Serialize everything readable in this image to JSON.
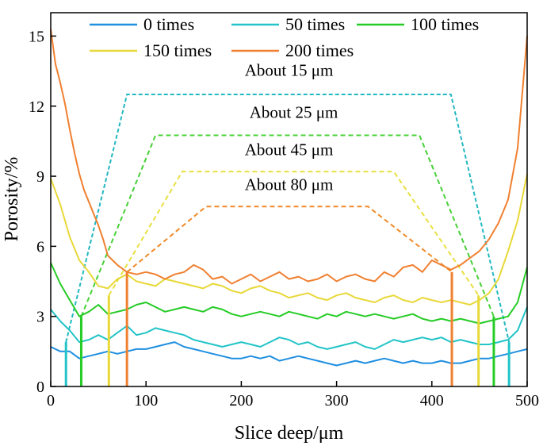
{
  "chart_data": {
    "type": "line",
    "title": "",
    "xlabel": "Slice deep/μm",
    "ylabel": "Porosity/%",
    "xlim": [
      0,
      500
    ],
    "ylim": [
      0,
      16
    ],
    "xticks": [
      0,
      100,
      200,
      300,
      400,
      500
    ],
    "yticks": [
      0,
      3,
      6,
      9,
      12,
      15
    ],
    "grid": false,
    "legend_position": "top",
    "series": [
      {
        "name": "0 times",
        "color": "#1f8fe0",
        "x": [
          0,
          10,
          20,
          30,
          40,
          50,
          60,
          70,
          80,
          90,
          100,
          110,
          120,
          130,
          140,
          150,
          160,
          170,
          180,
          190,
          200,
          210,
          220,
          230,
          240,
          250,
          260,
          270,
          280,
          290,
          300,
          310,
          320,
          330,
          340,
          350,
          360,
          370,
          380,
          390,
          400,
          410,
          420,
          430,
          440,
          450,
          460,
          470,
          480,
          490,
          500
        ],
        "values": [
          1.7,
          1.5,
          1.5,
          1.2,
          1.3,
          1.4,
          1.5,
          1.4,
          1.5,
          1.6,
          1.6,
          1.7,
          1.8,
          1.9,
          1.7,
          1.6,
          1.5,
          1.4,
          1.3,
          1.2,
          1.2,
          1.3,
          1.2,
          1.3,
          1.1,
          1.2,
          1.3,
          1.2,
          1.1,
          1.0,
          0.9,
          1.0,
          1.1,
          1.0,
          1.1,
          1.2,
          1.1,
          1.0,
          1.1,
          1.0,
          1.0,
          1.1,
          1.0,
          1.0,
          1.1,
          1.2,
          1.2,
          1.3,
          1.4,
          1.5,
          1.6
        ]
      },
      {
        "name": "50 times",
        "color": "#22c4c8",
        "x": [
          0,
          10,
          20,
          30,
          40,
          50,
          60,
          70,
          80,
          90,
          100,
          110,
          120,
          130,
          140,
          150,
          160,
          170,
          180,
          190,
          200,
          210,
          220,
          230,
          240,
          250,
          260,
          270,
          280,
          290,
          300,
          310,
          320,
          330,
          340,
          350,
          360,
          370,
          380,
          390,
          400,
          410,
          420,
          430,
          440,
          450,
          460,
          470,
          480,
          490,
          500
        ],
        "values": [
          3.3,
          2.8,
          2.4,
          1.9,
          2.0,
          2.2,
          2.0,
          2.3,
          2.6,
          2.2,
          2.3,
          2.5,
          2.4,
          2.3,
          2.2,
          2.0,
          1.9,
          1.8,
          1.7,
          1.8,
          1.9,
          1.8,
          1.7,
          1.9,
          2.1,
          2.0,
          1.8,
          1.9,
          1.7,
          1.6,
          1.7,
          1.8,
          1.9,
          1.7,
          1.6,
          1.8,
          2.0,
          1.9,
          2.0,
          2.1,
          2.0,
          2.1,
          1.9,
          2.0,
          1.9,
          1.8,
          1.8,
          1.9,
          2.0,
          2.4,
          3.4
        ]
      },
      {
        "name": "100 times",
        "color": "#26cc26",
        "x": [
          0,
          10,
          20,
          30,
          40,
          50,
          60,
          70,
          80,
          90,
          100,
          110,
          120,
          130,
          140,
          150,
          160,
          170,
          180,
          190,
          200,
          210,
          220,
          230,
          240,
          250,
          260,
          270,
          280,
          290,
          300,
          310,
          320,
          330,
          340,
          350,
          360,
          370,
          380,
          390,
          400,
          410,
          420,
          430,
          440,
          450,
          460,
          470,
          480,
          490,
          500
        ],
        "values": [
          5.3,
          4.4,
          3.7,
          3.0,
          3.2,
          3.5,
          3.1,
          3.2,
          3.3,
          3.5,
          3.6,
          3.4,
          3.2,
          3.3,
          3.4,
          3.3,
          3.2,
          3.4,
          3.3,
          3.1,
          3.0,
          3.1,
          3.2,
          3.1,
          3.0,
          3.2,
          3.1,
          3.0,
          2.9,
          3.1,
          3.0,
          3.2,
          3.1,
          3.0,
          3.1,
          3.0,
          2.9,
          3.0,
          3.1,
          2.9,
          2.8,
          2.9,
          2.8,
          2.9,
          2.8,
          2.7,
          2.8,
          2.9,
          3.0,
          3.6,
          5.1
        ]
      },
      {
        "name": "150 times",
        "color": "#e8d838",
        "x": [
          0,
          10,
          20,
          30,
          40,
          50,
          60,
          70,
          80,
          90,
          100,
          110,
          120,
          130,
          140,
          150,
          160,
          170,
          180,
          190,
          200,
          210,
          220,
          230,
          240,
          250,
          260,
          270,
          280,
          290,
          300,
          310,
          320,
          330,
          340,
          350,
          360,
          370,
          380,
          390,
          400,
          410,
          420,
          430,
          440,
          450,
          460,
          470,
          480,
          490,
          500
        ],
        "values": [
          8.9,
          7.8,
          6.4,
          5.4,
          4.9,
          4.3,
          4.2,
          4.6,
          4.8,
          4.5,
          4.4,
          4.3,
          4.6,
          4.5,
          4.4,
          4.3,
          4.2,
          4.4,
          4.3,
          4.1,
          4.0,
          4.2,
          4.3,
          4.1,
          4.0,
          3.8,
          3.9,
          4.0,
          3.8,
          3.7,
          3.9,
          4.0,
          3.8,
          3.7,
          3.6,
          3.8,
          3.9,
          3.7,
          3.6,
          3.8,
          3.7,
          3.6,
          3.7,
          3.6,
          3.5,
          3.7,
          4.0,
          4.6,
          5.8,
          7.1,
          9.1
        ]
      },
      {
        "name": "200 times",
        "color": "#f08030",
        "x": [
          0,
          5,
          10,
          15,
          20,
          25,
          30,
          35,
          40,
          45,
          50,
          55,
          60,
          70,
          80,
          90,
          100,
          110,
          120,
          130,
          140,
          150,
          160,
          170,
          180,
          190,
          200,
          210,
          220,
          230,
          240,
          250,
          260,
          270,
          280,
          290,
          300,
          310,
          320,
          330,
          340,
          350,
          360,
          370,
          380,
          390,
          400,
          410,
          420,
          430,
          440,
          450,
          460,
          470,
          480,
          490,
          500
        ],
        "values": [
          15.3,
          13.8,
          13.0,
          12.1,
          11.0,
          10.0,
          9.1,
          8.4,
          7.9,
          7.4,
          6.9,
          6.3,
          5.6,
          5.2,
          4.9,
          4.8,
          4.9,
          4.8,
          4.6,
          4.8,
          4.9,
          5.2,
          5.0,
          4.6,
          4.7,
          4.4,
          4.6,
          4.8,
          4.5,
          4.7,
          4.9,
          4.6,
          4.7,
          4.5,
          4.6,
          4.8,
          4.5,
          4.7,
          4.8,
          4.6,
          4.5,
          4.9,
          4.7,
          5.1,
          5.2,
          4.9,
          5.4,
          5.2,
          5.0,
          5.2,
          5.5,
          5.8,
          6.3,
          7.0,
          8.0,
          10.2,
          15.0
        ]
      }
    ],
    "boundaries": [
      {
        "series": "50 times",
        "color": "#22c4c8",
        "x": [
          16,
          481
        ],
        "y": 1.9
      },
      {
        "series": "100 times",
        "color": "#26cc26",
        "x": [
          32,
          465
        ],
        "y": 3.0
      },
      {
        "series": "150 times",
        "color": "#e8d838",
        "x": [
          61,
          449
        ],
        "y": 3.9
      },
      {
        "series": "200 times",
        "color": "#f08030",
        "x": [
          80,
          421
        ],
        "y": 4.9
      }
    ],
    "annotations": [
      {
        "text": "About 15 μm",
        "color": "#22b8c0",
        "level": 12.5,
        "plateau": [
          80,
          420
        ],
        "label_x": 250,
        "label_y": 13.3
      },
      {
        "text": "About 25 μm",
        "color": "#48d038",
        "level": 10.75,
        "plateau": [
          110,
          387
        ],
        "label_x": 255,
        "label_y": 11.5
      },
      {
        "text": "About 45 μm",
        "color": "#e8e040",
        "level": 9.2,
        "plateau": [
          138,
          360
        ],
        "label_x": 250,
        "label_y": 9.9
      },
      {
        "text": "About 80 μm",
        "color": "#f08a28",
        "level": 7.7,
        "plateau": [
          163,
          333
        ],
        "label_x": 250,
        "label_y": 8.4
      }
    ]
  }
}
